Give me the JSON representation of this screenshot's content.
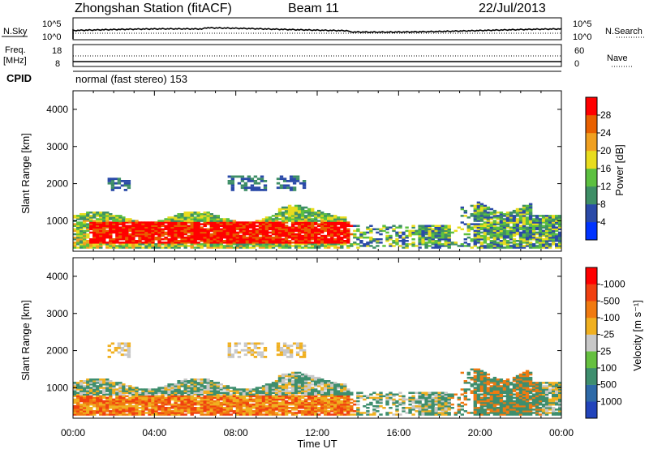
{
  "header": {
    "title": "Zhongshan Station (fitACF)",
    "beam": "Beam 11",
    "date": "22/Jul/2013"
  },
  "nsky_panel": {
    "left_label": "N.Sky",
    "left_ticks": [
      "10^5",
      "10^0"
    ],
    "right_label": "N.Search",
    "right_ticks": [
      "10^5",
      "10^0"
    ]
  },
  "freq_panel": {
    "left_label_1": "Freq.",
    "left_label_2": "[MHz]",
    "left_ticks": [
      "18",
      "8"
    ],
    "right_label": "Nave",
    "right_ticks": [
      "60",
      "0"
    ]
  },
  "cpid": {
    "label": "CPID",
    "value": "normal (fast stereo) 153"
  },
  "x_axis": {
    "label": "Time UT",
    "ticks": [
      "00:00",
      "04:00",
      "08:00",
      "12:00",
      "16:00",
      "20:00",
      "00:00"
    ]
  },
  "chart_data": [
    {
      "type": "heatmap",
      "title": "",
      "xlabel": "Time UT",
      "ylabel": "Slant Range [km]",
      "x_ticks": [
        "00:00",
        "04:00",
        "08:00",
        "12:00",
        "16:00",
        "20:00",
        "00:00"
      ],
      "xlim_hours": [
        0,
        24
      ],
      "ylim": [
        180,
        4500
      ],
      "y_ticks": [
        1000,
        2000,
        3000,
        4000
      ],
      "colorbar": {
        "label": "Power [dB]",
        "ticks": [
          "4",
          "8",
          "12",
          "16",
          "20",
          "24",
          "28"
        ],
        "colors": [
          "#0033ff",
          "#2a4aa8",
          "#3e8e66",
          "#5cc040",
          "#e8dc1e",
          "#f0a020",
          "#e86000",
          "#ff0000"
        ]
      }
    },
    {
      "type": "heatmap",
      "title": "",
      "xlabel": "Time UT",
      "ylabel": "Slant Range [km]",
      "x_ticks": [
        "00:00",
        "04:00",
        "08:00",
        "12:00",
        "16:00",
        "20:00",
        "00:00"
      ],
      "xlim_hours": [
        0,
        24
      ],
      "ylim": [
        180,
        4500
      ],
      "y_ticks": [
        1000,
        2000,
        3000,
        4000
      ],
      "colorbar": {
        "label": "Velocity [m s⁻¹]",
        "ticks": [
          "1000",
          "500",
          "100",
          "25",
          "-25",
          "-100",
          "-500",
          "-1000"
        ],
        "colors": [
          "#2244bb",
          "#2e6aa8",
          "#3e8e6e",
          "#66c040",
          "#c8c8c8",
          "#f0b020",
          "#f07a10",
          "#f04010",
          "#ff0000"
        ]
      }
    }
  ]
}
